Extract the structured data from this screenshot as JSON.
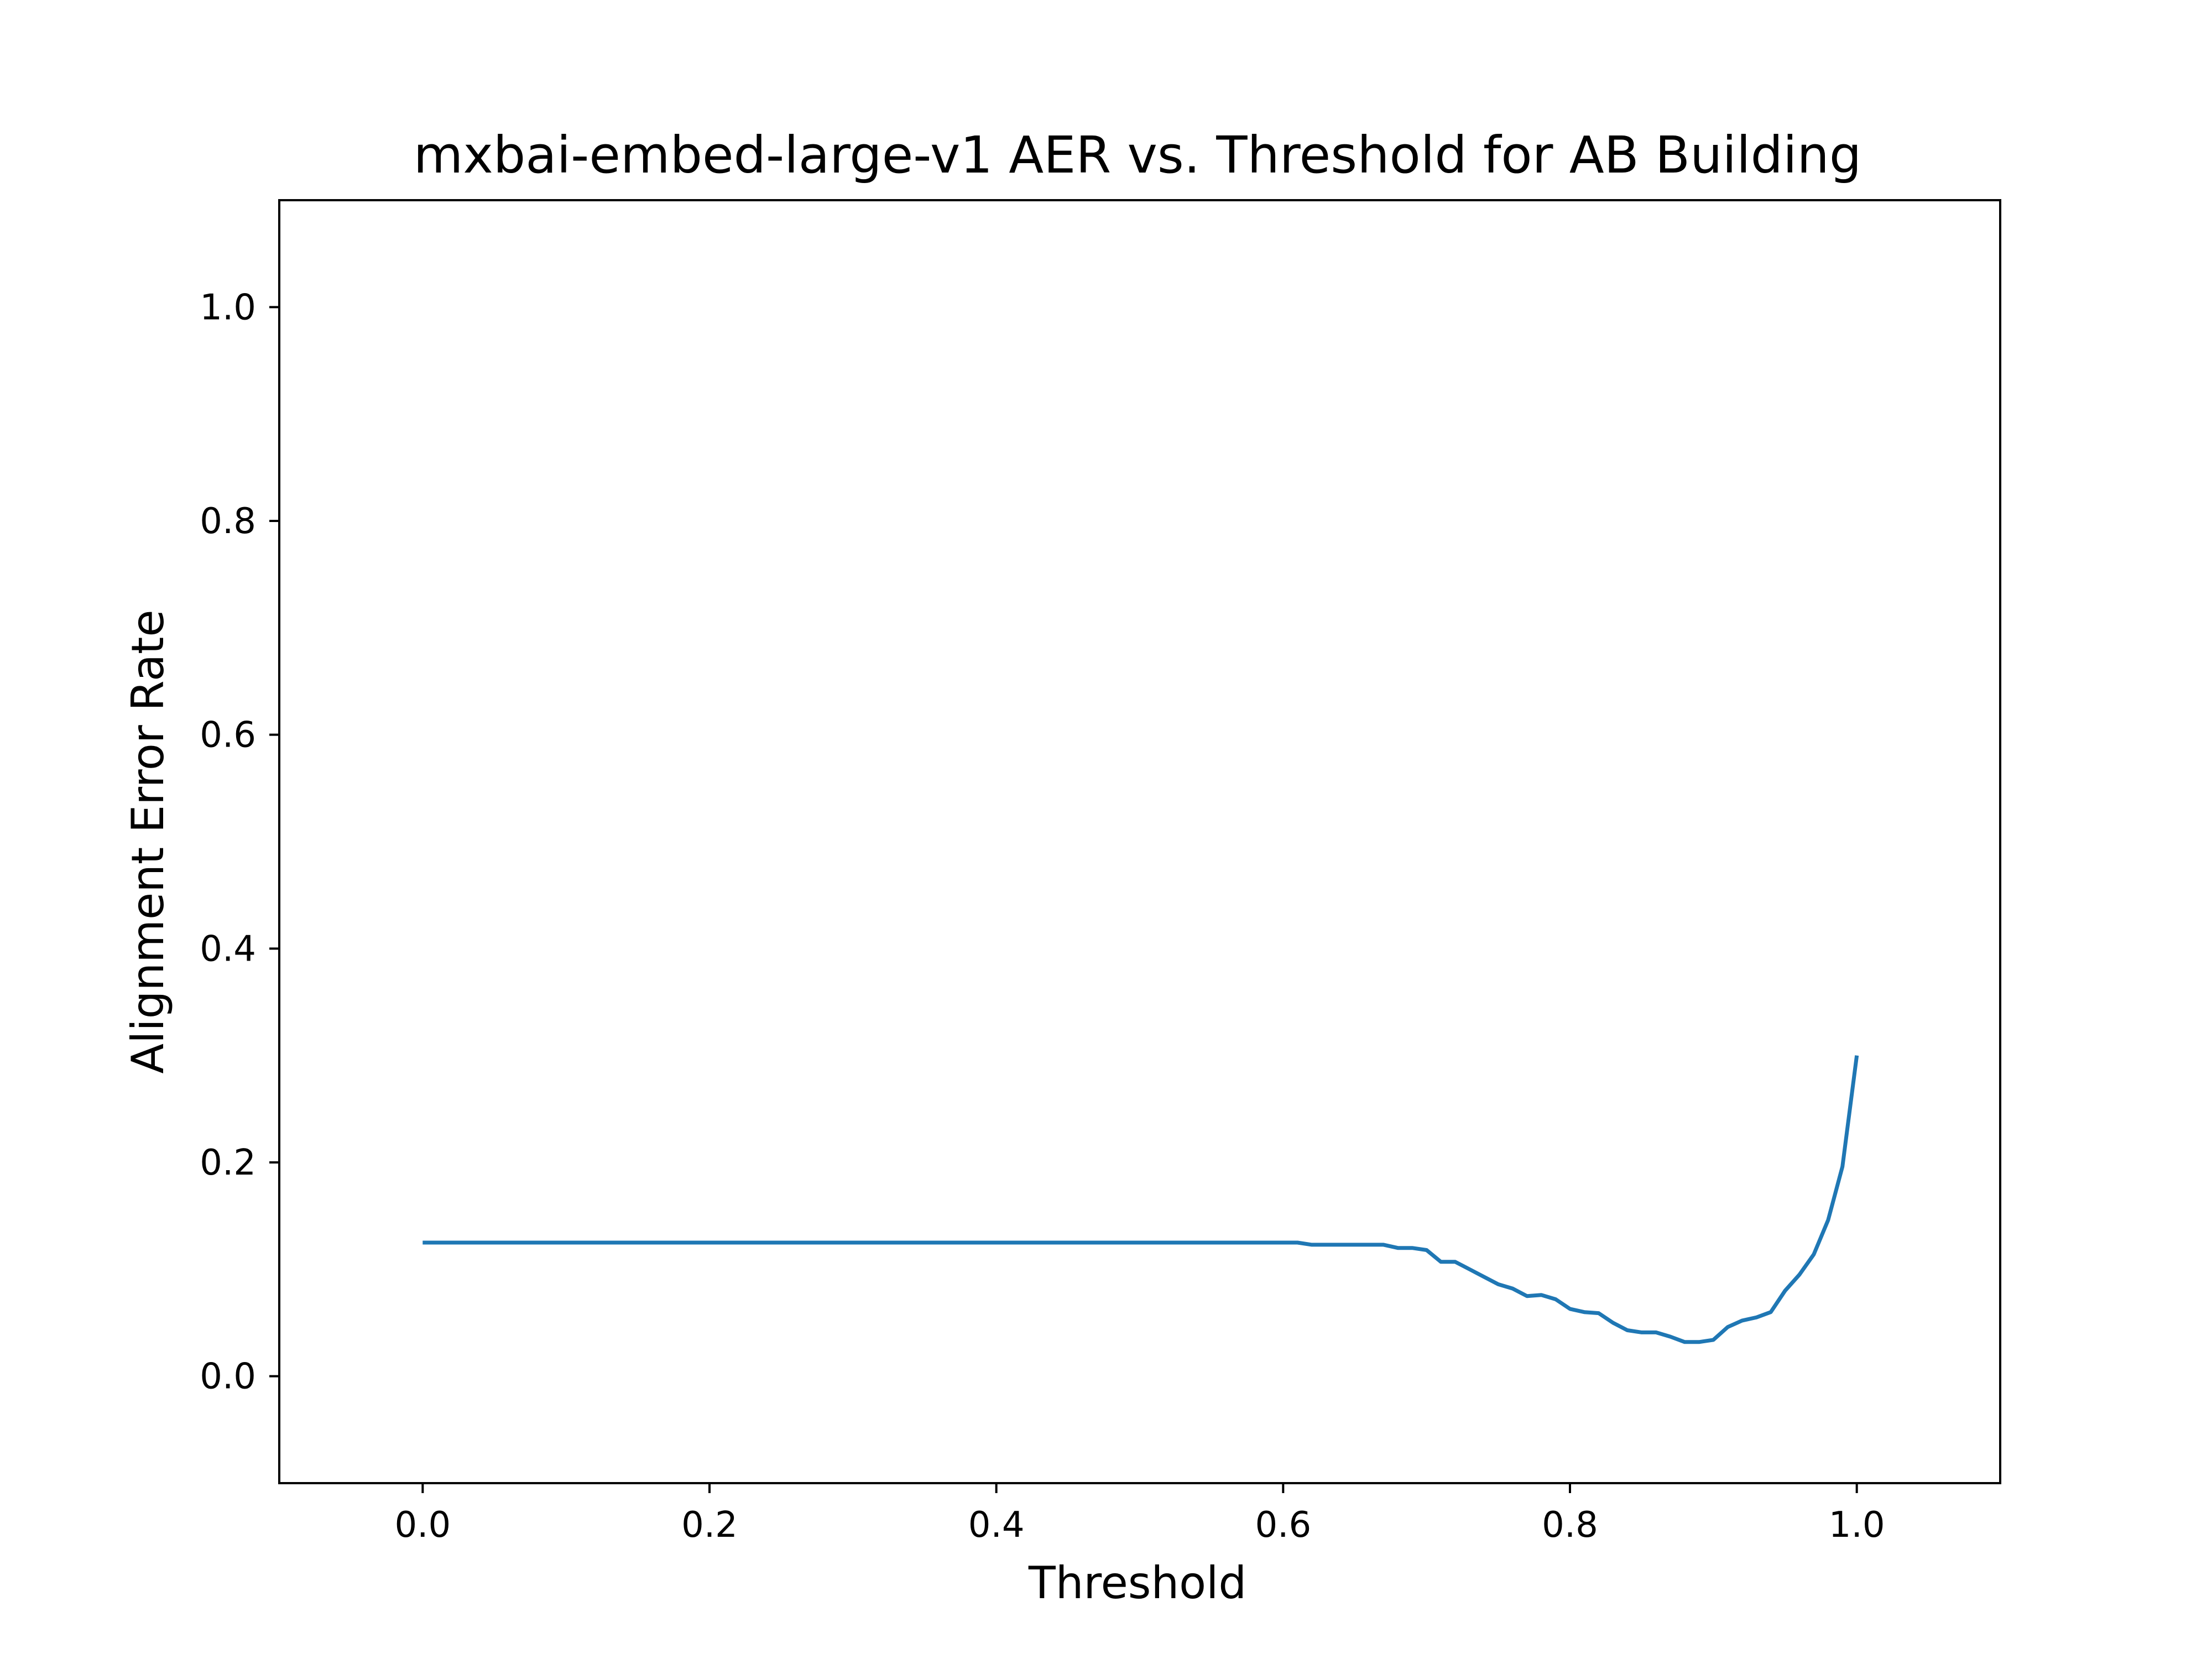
{
  "chart_data": {
    "type": "line",
    "title": "mxbai-embed-large-v1 AER vs. Threshold for AB Building",
    "xlabel": "Threshold",
    "ylabel": "Alignment Error Rate",
    "xlim": [
      -0.1,
      1.1
    ],
    "ylim": [
      -0.1,
      1.1
    ],
    "xticks": [
      0.0,
      0.2,
      0.4,
      0.6,
      0.8,
      1.0
    ],
    "xtick_labels": [
      "0.0",
      "0.2",
      "0.4",
      "0.6",
      "0.8",
      "1.0"
    ],
    "yticks": [
      0.0,
      0.2,
      0.4,
      0.6,
      0.8,
      1.0
    ],
    "ytick_labels": [
      "0.0",
      "0.2",
      "0.4",
      "0.6",
      "0.8",
      "1.0"
    ],
    "grid": false,
    "series": [
      {
        "color": "#1f77b4",
        "x": [
          0.0,
          0.1,
          0.2,
          0.3,
          0.4,
          0.5,
          0.6,
          0.61,
          0.62,
          0.63,
          0.64,
          0.65,
          0.66,
          0.67,
          0.68,
          0.69,
          0.7,
          0.71,
          0.72,
          0.73,
          0.74,
          0.75,
          0.76,
          0.77,
          0.78,
          0.79,
          0.8,
          0.81,
          0.82,
          0.83,
          0.84,
          0.85,
          0.86,
          0.87,
          0.88,
          0.89,
          0.9,
          0.91,
          0.92,
          0.93,
          0.94,
          0.95,
          0.96,
          0.97,
          0.98,
          0.99,
          1.0
        ],
        "y": [
          0.125,
          0.125,
          0.125,
          0.125,
          0.125,
          0.125,
          0.125,
          0.125,
          0.123,
          0.123,
          0.123,
          0.123,
          0.123,
          0.123,
          0.12,
          0.12,
          0.118,
          0.107,
          0.107,
          0.1,
          0.093,
          0.086,
          0.082,
          0.075,
          0.076,
          0.072,
          0.063,
          0.06,
          0.059,
          0.05,
          0.043,
          0.041,
          0.041,
          0.037,
          0.032,
          0.032,
          0.034,
          0.046,
          0.052,
          0.055,
          0.06,
          0.08,
          0.095,
          0.114,
          0.146,
          0.196,
          0.3
        ]
      }
    ]
  }
}
